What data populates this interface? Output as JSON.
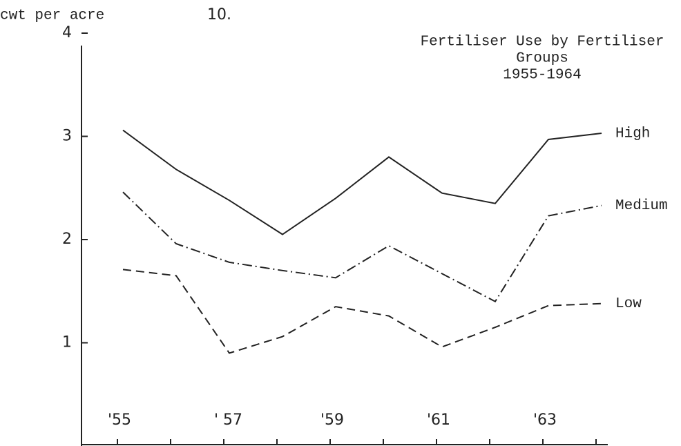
{
  "chart_data": {
    "type": "line",
    "page_number": "10.",
    "title_lines": [
      "Fertiliser Use by Fertiliser",
      "Groups",
      "1955-1964"
    ],
    "y_label": "cwt per acre",
    "categories": [
      "'55",
      null,
      "' 57",
      null,
      "'59",
      null,
      "'61",
      null,
      "'63",
      null
    ],
    "series": [
      {
        "name": "High",
        "color": "#222",
        "dash": "none",
        "values": [
          3.06,
          2.68,
          2.38,
          2.05,
          2.4,
          2.8,
          2.45,
          2.35,
          2.97,
          3.03
        ]
      },
      {
        "name": "Medium",
        "color": "#222",
        "dash": "14 5 2 5",
        "values": [
          2.46,
          1.96,
          1.78,
          1.7,
          1.63,
          1.94,
          1.67,
          1.4,
          2.23,
          2.33
        ]
      },
      {
        "name": "Low",
        "color": "#222",
        "dash": "12 7",
        "values": [
          1.71,
          1.65,
          0.9,
          1.06,
          1.35,
          1.26,
          0.96,
          1.15,
          1.36,
          1.38
        ]
      }
    ],
    "ylim": [
      0,
      4
    ],
    "yticks": [
      1,
      2,
      3,
      4
    ],
    "grid": false
  }
}
